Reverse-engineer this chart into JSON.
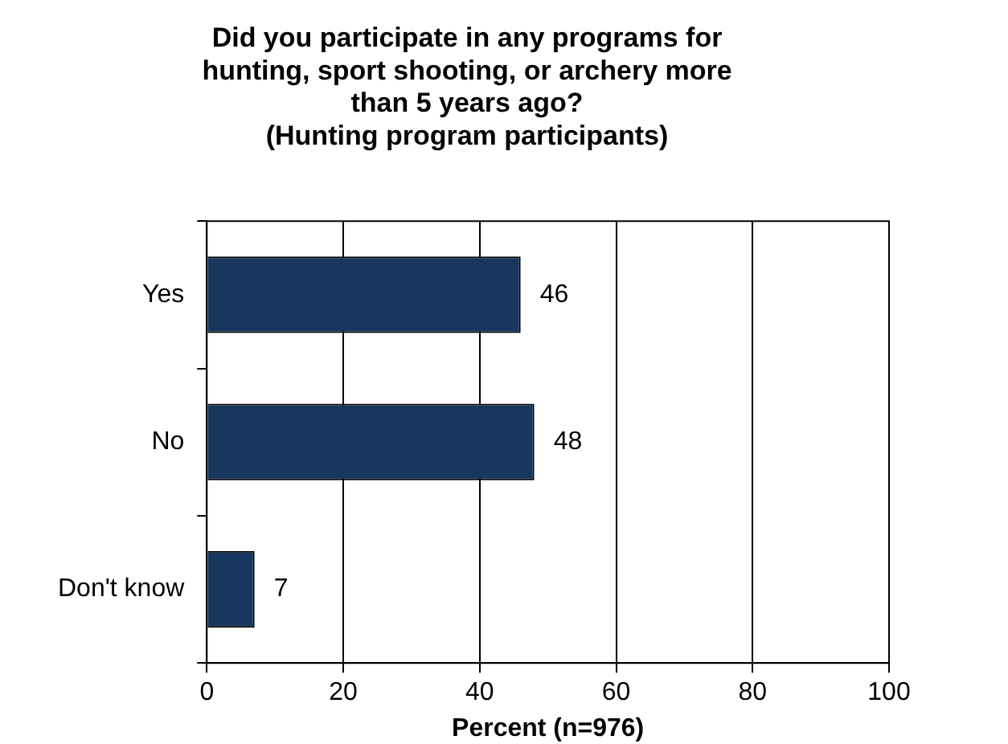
{
  "chart_data": {
    "type": "bar",
    "orientation": "horizontal",
    "title": "Did you participate in any programs for hunting, sport shooting, or archery more than 5 years ago?",
    "subtitle": "(Hunting program participants)",
    "xlabel": "Percent (n=976)",
    "categories": [
      "Yes",
      "No",
      "Don't know"
    ],
    "values": [
      46,
      48,
      7
    ],
    "color": "#17375e",
    "xlim": [
      0,
      100
    ],
    "xticks": [
      0,
      20,
      40,
      60,
      80,
      100
    ],
    "grid": "x",
    "data_labels": true,
    "legend": false
  }
}
